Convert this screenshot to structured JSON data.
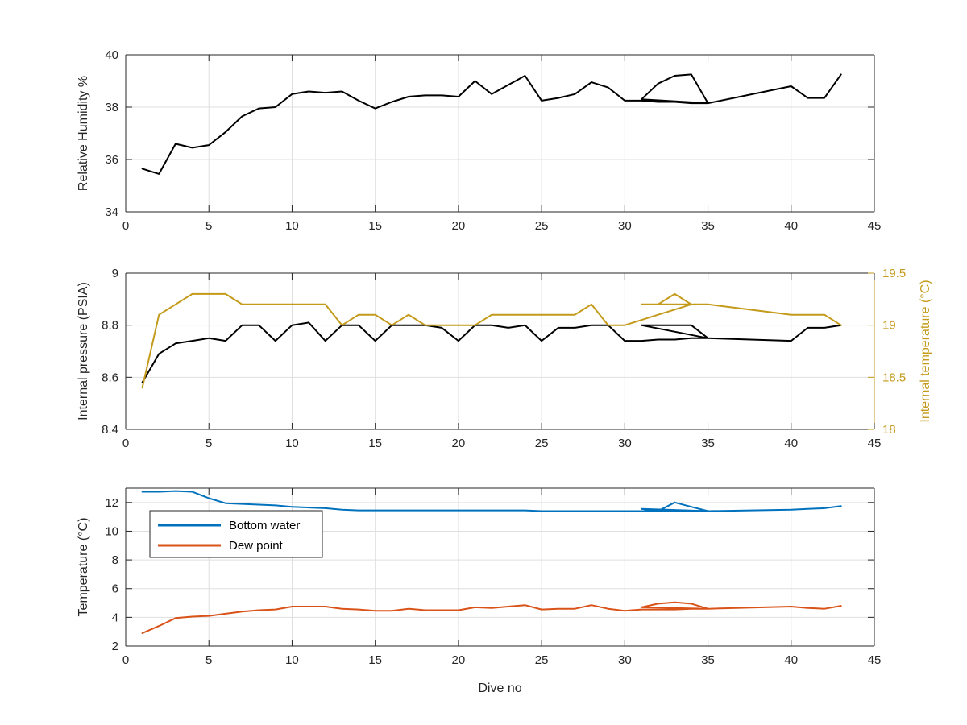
{
  "chart_data": [
    {
      "type": "line",
      "xlabel": "",
      "ylabel": "Relative Humidity %",
      "xlim": [
        0,
        45
      ],
      "ylim": [
        34,
        40
      ],
      "xticks": [
        0,
        5,
        10,
        15,
        20,
        25,
        30,
        35,
        40,
        45
      ],
      "yticks": [
        34,
        36,
        38,
        40
      ],
      "grid": true,
      "series": [
        {
          "color": "#000000",
          "x": [
            1,
            2,
            3,
            4,
            5,
            6,
            7,
            8,
            9,
            10,
            11,
            12,
            13,
            14,
            15,
            16,
            17,
            18,
            19,
            20,
            21,
            22,
            23,
            24,
            25,
            26,
            27,
            28,
            29,
            30,
            31,
            32,
            33,
            34,
            35,
            31,
            32,
            33,
            34,
            35,
            40,
            41,
            42,
            43
          ],
          "y": [
            35.65,
            35.45,
            36.6,
            36.45,
            36.55,
            37.05,
            37.65,
            37.95,
            38.0,
            38.5,
            38.6,
            38.55,
            38.6,
            38.25,
            37.95,
            38.2,
            38.4,
            38.45,
            38.45,
            38.4,
            39.0,
            38.5,
            38.85,
            39.2,
            38.25,
            38.35,
            38.5,
            38.95,
            38.75,
            38.25,
            38.25,
            38.2,
            38.2,
            38.15,
            38.15,
            38.3,
            38.9,
            39.2,
            39.25,
            38.15,
            38.8,
            38.35,
            38.35,
            39.25
          ]
        }
      ]
    },
    {
      "type": "line",
      "xlabel": "",
      "ylabel": "Internal pressure (PSIA)",
      "y2label": "Internal temperature (°C)",
      "xlim": [
        0,
        45
      ],
      "ylim": [
        8.4,
        9
      ],
      "y2lim": [
        18,
        19.5
      ],
      "xticks": [
        0,
        5,
        10,
        15,
        20,
        25,
        30,
        35,
        40,
        45
      ],
      "yticks": [
        8.4,
        8.6,
        8.8,
        9
      ],
      "y2ticks": [
        18,
        18.5,
        19,
        19.5
      ],
      "grid": true,
      "right_axis_color": "#c49a1a",
      "series": [
        {
          "axis": "left",
          "color": "#000000",
          "x": [
            1,
            2,
            3,
            4,
            5,
            6,
            7,
            8,
            9,
            10,
            11,
            12,
            13,
            14,
            15,
            16,
            17,
            18,
            19,
            20,
            21,
            22,
            23,
            24,
            25,
            26,
            27,
            28,
            29,
            30,
            31,
            32,
            33,
            34,
            35,
            31,
            32,
            33,
            34,
            35,
            40,
            41,
            42,
            43
          ],
          "y": [
            8.58,
            8.69,
            8.73,
            8.74,
            8.75,
            8.74,
            8.8,
            8.8,
            8.74,
            8.8,
            8.81,
            8.74,
            8.8,
            8.8,
            8.74,
            8.8,
            8.8,
            8.8,
            8.79,
            8.74,
            8.8,
            8.8,
            8.79,
            8.8,
            8.74,
            8.79,
            8.79,
            8.8,
            8.8,
            8.74,
            8.74,
            8.745,
            8.745,
            8.75,
            8.75,
            8.8,
            8.8,
            8.8,
            8.8,
            8.75,
            8.74,
            8.79,
            8.79,
            8.8
          ]
        },
        {
          "axis": "right",
          "color": "#c49a1a",
          "x": [
            1,
            2,
            3,
            4,
            5,
            6,
            7,
            8,
            9,
            10,
            11,
            12,
            13,
            14,
            15,
            16,
            17,
            18,
            19,
            20,
            21,
            22,
            23,
            24,
            25,
            26,
            27,
            28,
            29,
            30,
            31,
            32,
            33,
            34,
            35,
            31,
            32,
            33,
            34,
            35,
            40,
            41,
            42,
            43
          ],
          "y": [
            18.4,
            19.1,
            19.2,
            19.3,
            19.3,
            19.3,
            19.2,
            19.2,
            19.2,
            19.2,
            19.2,
            19.2,
            19.0,
            19.1,
            19.1,
            19.0,
            19.1,
            19.0,
            19.0,
            19.0,
            19.0,
            19.1,
            19.1,
            19.1,
            19.1,
            19.1,
            19.1,
            19.2,
            19.0,
            19.0,
            19.05,
            19.1,
            19.15,
            19.2,
            19.2,
            19.2,
            19.2,
            19.3,
            19.2,
            19.2,
            19.1,
            19.1,
            19.1,
            19.0
          ]
        }
      ]
    },
    {
      "type": "line",
      "xlabel": "Dive no",
      "ylabel": "Temperature (°C)",
      "xlim": [
        0,
        45
      ],
      "ylim": [
        2,
        13
      ],
      "xticks": [
        0,
        5,
        10,
        15,
        20,
        25,
        30,
        35,
        40,
        45
      ],
      "yticks": [
        2,
        4,
        6,
        8,
        10,
        12
      ],
      "grid": true,
      "legend": "upper-left",
      "series": [
        {
          "name": "Bottom water",
          "color": "#0072bd",
          "x": [
            1,
            2,
            3,
            4,
            5,
            6,
            7,
            8,
            9,
            10,
            11,
            12,
            13,
            14,
            15,
            16,
            17,
            18,
            19,
            20,
            21,
            22,
            23,
            24,
            25,
            26,
            27,
            28,
            29,
            30,
            31,
            32,
            33,
            34,
            35,
            31,
            32,
            33,
            34,
            35,
            40,
            41,
            42,
            43
          ],
          "y": [
            12.75,
            12.75,
            12.8,
            12.75,
            12.3,
            11.95,
            11.9,
            11.85,
            11.8,
            11.7,
            11.65,
            11.6,
            11.5,
            11.45,
            11.45,
            11.45,
            11.45,
            11.45,
            11.45,
            11.45,
            11.45,
            11.45,
            11.45,
            11.45,
            11.4,
            11.4,
            11.4,
            11.4,
            11.4,
            11.4,
            11.4,
            11.4,
            11.4,
            11.4,
            11.4,
            11.55,
            11.4,
            12.0,
            11.7,
            11.4,
            11.5,
            11.55,
            11.6,
            11.75
          ]
        },
        {
          "name": "Dew point",
          "color": "#d95319",
          "x": [
            1,
            2,
            3,
            4,
            5,
            6,
            7,
            8,
            9,
            10,
            11,
            12,
            13,
            14,
            15,
            16,
            17,
            18,
            19,
            20,
            21,
            22,
            23,
            24,
            25,
            26,
            27,
            28,
            29,
            30,
            31,
            32,
            33,
            34,
            35,
            31,
            32,
            33,
            34,
            35,
            40,
            41,
            42,
            43
          ],
          "y": [
            2.9,
            3.4,
            3.95,
            4.05,
            4.1,
            4.25,
            4.4,
            4.5,
            4.55,
            4.75,
            4.75,
            4.75,
            4.6,
            4.55,
            4.45,
            4.45,
            4.6,
            4.5,
            4.5,
            4.5,
            4.7,
            4.65,
            4.75,
            4.85,
            4.55,
            4.6,
            4.6,
            4.85,
            4.6,
            4.45,
            4.55,
            4.55,
            4.55,
            4.6,
            4.6,
            4.7,
            4.95,
            5.05,
            4.95,
            4.6,
            4.75,
            4.65,
            4.6,
            4.8
          ]
        }
      ]
    }
  ]
}
